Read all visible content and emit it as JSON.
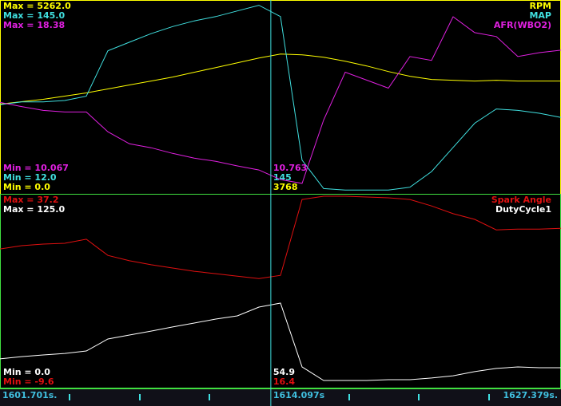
{
  "time_axis": {
    "start_label": "1601.701s.",
    "cursor_label": "1614.097s",
    "end_label": "1627.379s.",
    "xlim": [
      1601.701,
      1627.379
    ],
    "cursor": 1614.097,
    "xticks": [
      1604.883,
      1608.102,
      1611.285,
      1617.686,
      1620.868,
      1624.087
    ]
  },
  "x": [
    1601.701,
    1602.689,
    1603.676,
    1604.664,
    1605.652,
    1606.639,
    1607.627,
    1608.614,
    1609.602,
    1610.59,
    1611.577,
    1612.565,
    1613.552,
    1614.54,
    1615.528,
    1616.515,
    1617.503,
    1618.491,
    1619.478,
    1620.466,
    1621.453,
    1622.441,
    1623.429,
    1624.416,
    1625.404,
    1626.391,
    1627.379
  ],
  "panels": [
    {
      "series": [
        {
          "name": "RPM",
          "color": "#ffff00",
          "max_label": "Max = 5262.0",
          "min_label": "Min = 0.0",
          "cursor_label": "3768",
          "ylim": [
            0.0,
            5262.0
          ],
          "values": [
            2432,
            2498,
            2565,
            2653,
            2741,
            2852,
            2963,
            3073,
            3183,
            3316,
            3449,
            3581,
            3714,
            3825,
            3803,
            3737,
            3626,
            3493,
            3338,
            3206,
            3117,
            3095,
            3073,
            3095,
            3073,
            3073,
            3073
          ]
        },
        {
          "name": "MAP",
          "color": "#40e0e0",
          "max_label": "Max = 145.0",
          "min_label": "Min = 12.0",
          "cursor_label": "145",
          "ylim": [
            12.0,
            145.0
          ],
          "values": [
            73,
            75,
            75,
            76,
            79,
            111,
            117,
            123,
            128,
            132,
            135,
            139,
            143,
            135,
            34,
            14,
            13,
            13,
            13,
            15,
            26,
            43,
            60,
            70,
            69,
            67,
            64
          ]
        },
        {
          "name": "AFR(WBO2)",
          "color": "#e020e0",
          "max_label": "Max = 18.38",
          "min_label": "Min = 10.067",
          "cursor_label": "10.763",
          "ylim": [
            10.067,
            18.38
          ],
          "values": [
            13.98,
            13.8,
            13.63,
            13.56,
            13.56,
            12.69,
            12.16,
            11.99,
            11.74,
            11.53,
            11.39,
            11.19,
            11.01,
            10.59,
            10.42,
            13.21,
            15.31,
            14.96,
            14.61,
            16.0,
            15.83,
            17.75,
            17.05,
            16.88,
            16.0,
            16.17,
            16.28
          ]
        }
      ]
    },
    {
      "series": [
        {
          "name": "Spark Angle",
          "color": "#e01010",
          "max_label": "Max = 37.2",
          "min_label": "Min = -9.6",
          "cursor_label": "16.4",
          "ylim": [
            -9.6,
            37.2
          ],
          "values": [
            24.2,
            25.0,
            25.4,
            25.6,
            26.6,
            22.6,
            21.3,
            20.3,
            19.5,
            18.7,
            18.1,
            17.5,
            16.9,
            17.7,
            36.4,
            37.2,
            37.2,
            37.0,
            36.8,
            36.4,
            34.8,
            32.9,
            31.5,
            28.9,
            29.1,
            29.1,
            29.3
          ]
        },
        {
          "name": "DutyCycle1",
          "color": "#ffffff",
          "max_label": "Max = 125.0",
          "min_label": "Min = 0.0",
          "cursor_label": "54.9",
          "ylim": [
            0.0,
            125.0
          ],
          "values": [
            17.9,
            19.4,
            20.5,
            21.5,
            23.1,
            31.0,
            33.6,
            36.2,
            38.9,
            41.5,
            44.1,
            46.2,
            52.0,
            54.6,
            12.6,
            3.7,
            3.7,
            3.7,
            4.2,
            4.2,
            5.3,
            6.8,
            9.5,
            11.6,
            12.6,
            12.1,
            12.1
          ]
        }
      ]
    }
  ]
}
